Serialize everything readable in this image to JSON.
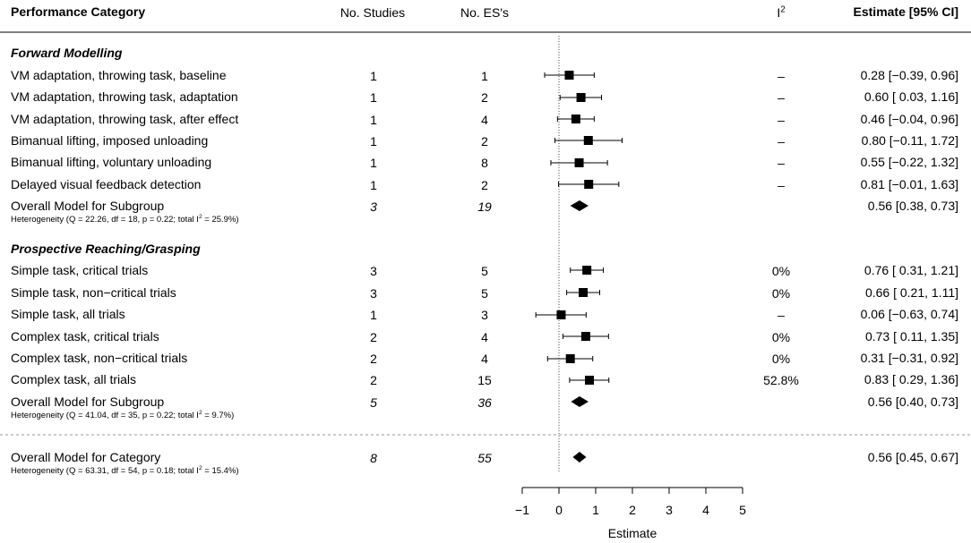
{
  "columns": {
    "category": "Performance Category",
    "studies": "No. Studies",
    "es": "No. ES's",
    "i2_base": "I",
    "i2_sup": "2",
    "estimate": "Estimate [95% CI]"
  },
  "sections": [
    {
      "title": "Forward Modelling",
      "rows": [
        {
          "label": "VM adaptation, throwing task, baseline",
          "studies": "1",
          "es": "1",
          "i2": "–",
          "ci_text": "0.28 [−0.39, 0.96]"
        },
        {
          "label": "VM adaptation, throwing task, adaptation",
          "studies": "1",
          "es": "2",
          "i2": "–",
          "ci_text": "0.60 [ 0.03, 1.16]"
        },
        {
          "label": "VM adaptation, throwing task, after effect",
          "studies": "1",
          "es": "4",
          "i2": "–",
          "ci_text": "0.46 [−0.04, 0.96]"
        },
        {
          "label": "Bimanual lifting, imposed unloading",
          "studies": "1",
          "es": "2",
          "i2": "–",
          "ci_text": "0.80 [−0.11, 1.72]"
        },
        {
          "label": "Bimanual lifting, voluntary unloading",
          "studies": "1",
          "es": "8",
          "i2": "–",
          "ci_text": "0.55 [−0.22, 1.32]"
        },
        {
          "label": "Delayed visual feedback detection",
          "studies": "1",
          "es": "2",
          "i2": "–",
          "ci_text": "0.81 [−0.01, 1.63]"
        }
      ],
      "overall": {
        "label": "Overall Model for Subgroup",
        "studies": "3",
        "es": "19",
        "ci_text": "0.56 [0.38, 0.73]",
        "het_pre": "Heterogeneity (Q = 22.26, df = 18, p = 0.22; total I",
        "het_sup": "2",
        "het_post": " = 25.9%)"
      }
    },
    {
      "title": "Prospective Reaching/Grasping",
      "rows": [
        {
          "label": "Simple task, critical trials",
          "studies": "3",
          "es": "5",
          "i2": "0%",
          "ci_text": "0.76 [ 0.31, 1.21]"
        },
        {
          "label": "Simple task, non−critical trials",
          "studies": "3",
          "es": "5",
          "i2": "0%",
          "ci_text": "0.66 [ 0.21, 1.11]"
        },
        {
          "label": "Simple task, all trials",
          "studies": "1",
          "es": "3",
          "i2": "–",
          "ci_text": "0.06 [−0.63, 0.74]"
        },
        {
          "label": "Complex task, critical trials",
          "studies": "2",
          "es": "4",
          "i2": "0%",
          "ci_text": "0.73 [ 0.11, 1.35]"
        },
        {
          "label": "Complex task, non−critical trials",
          "studies": "2",
          "es": "4",
          "i2": "0%",
          "ci_text": "0.31 [−0.31, 0.92]"
        },
        {
          "label": "Complex task, all trials",
          "studies": "2",
          "es": "15",
          "i2": "52.8%",
          "ci_text": "0.83 [ 0.29, 1.36]"
        }
      ],
      "overall": {
        "label": "Overall Model for Subgroup",
        "studies": "5",
        "es": "36",
        "ci_text": "0.56 [0.40, 0.73]",
        "het_pre": "Heterogeneity (Q = 41.04, df = 35, p = 0.22; total I",
        "het_sup": "2",
        "het_post": " = 9.7%)"
      }
    }
  ],
  "category_overall": {
    "label": "Overall Model for Category",
    "studies": "8",
    "es": "55",
    "ci_text": "0.56 [0.45, 0.67]",
    "het_pre": "Heterogeneity (Q = 63.31, df = 54, p = 0.18; total I",
    "het_sup": "2",
    "het_post": " = 15.4%)"
  },
  "chart_data": {
    "type": "forest",
    "xlabel": "Estimate",
    "xlim": [
      -1,
      5
    ],
    "ticks": [
      -1,
      0,
      1,
      2,
      3,
      4,
      5
    ],
    "tick_labels": [
      "−1",
      "0",
      "1",
      "2",
      "3",
      "4",
      "5"
    ],
    "reference_line": 0,
    "studies": [
      {
        "label": "VM adaptation, throwing task, baseline",
        "est": 0.28,
        "lo": -0.39,
        "hi": 0.96
      },
      {
        "label": "VM adaptation, throwing task, adaptation",
        "est": 0.6,
        "lo": 0.03,
        "hi": 1.16
      },
      {
        "label": "VM adaptation, throwing task, after effect",
        "est": 0.46,
        "lo": -0.04,
        "hi": 0.96
      },
      {
        "label": "Bimanual lifting, imposed unloading",
        "est": 0.8,
        "lo": -0.11,
        "hi": 1.72
      },
      {
        "label": "Bimanual lifting, voluntary unloading",
        "est": 0.55,
        "lo": -0.22,
        "hi": 1.32
      },
      {
        "label": "Delayed visual feedback detection",
        "est": 0.81,
        "lo": -0.01,
        "hi": 1.63
      },
      {
        "label": "Simple task, critical trials",
        "est": 0.76,
        "lo": 0.31,
        "hi": 1.21
      },
      {
        "label": "Simple task, non-critical trials",
        "est": 0.66,
        "lo": 0.21,
        "hi": 1.11
      },
      {
        "label": "Simple task, all trials",
        "est": 0.06,
        "lo": -0.63,
        "hi": 0.74
      },
      {
        "label": "Complex task, critical trials",
        "est": 0.73,
        "lo": 0.11,
        "hi": 1.35
      },
      {
        "label": "Complex task, non-critical trials",
        "est": 0.31,
        "lo": -0.31,
        "hi": 0.92
      },
      {
        "label": "Complex task, all trials",
        "est": 0.83,
        "lo": 0.29,
        "hi": 1.36
      }
    ],
    "summaries": [
      {
        "label": "Forward Modelling",
        "est": 0.56,
        "lo": 0.38,
        "hi": 0.73
      },
      {
        "label": "Prospective Reaching/Grasping",
        "est": 0.56,
        "lo": 0.4,
        "hi": 0.73
      },
      {
        "label": "Overall Model for Category",
        "est": 0.56,
        "lo": 0.45,
        "hi": 0.67
      }
    ]
  }
}
